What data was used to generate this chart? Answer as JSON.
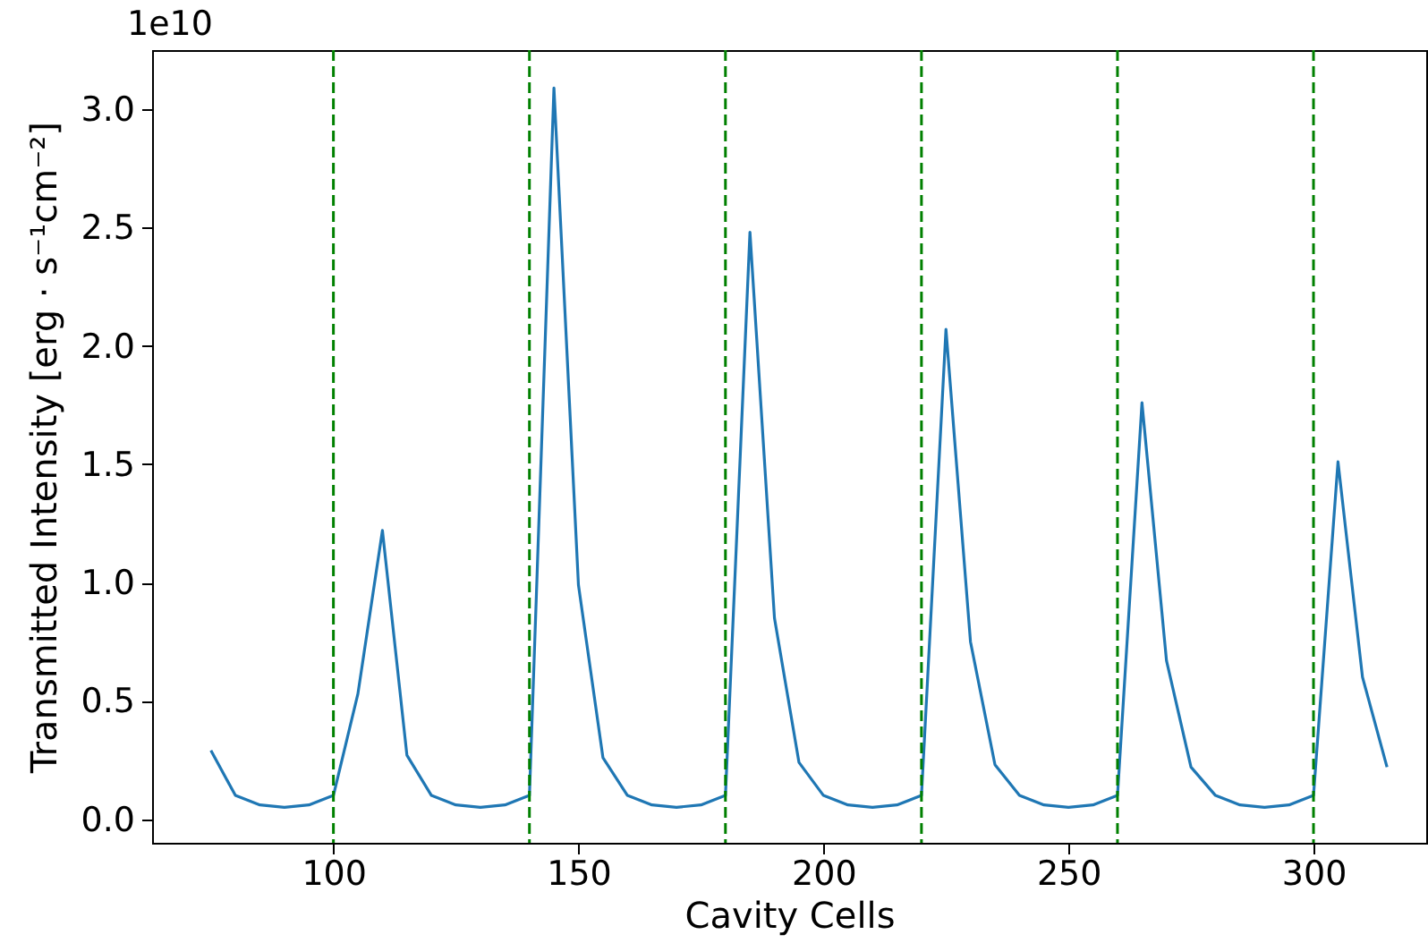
{
  "chart_data": {
    "type": "line",
    "xlabel": "Cavity Cells",
    "ylabel": "Transmitted Intensity [erg · s⁻¹cm⁻²]",
    "annotations": [
      "1e10"
    ],
    "x": [
      75,
      80,
      85,
      90,
      95,
      100,
      105,
      110,
      115,
      120,
      125,
      130,
      135,
      140,
      145,
      150,
      155,
      160,
      165,
      170,
      175,
      180,
      185,
      190,
      195,
      200,
      205,
      210,
      215,
      220,
      225,
      230,
      235,
      240,
      245,
      250,
      255,
      260,
      265,
      270,
      275,
      280,
      285,
      290,
      295,
      300,
      305,
      310,
      315
    ],
    "series": [
      {
        "color": "#1f77b4",
        "values": [
          0.29,
          0.1,
          0.06,
          0.05,
          0.06,
          0.1,
          0.53,
          1.22,
          0.27,
          0.1,
          0.06,
          0.05,
          0.06,
          0.1,
          3.09,
          0.99,
          0.26,
          0.1,
          0.06,
          0.05,
          0.06,
          0.1,
          2.48,
          0.85,
          0.24,
          0.1,
          0.06,
          0.05,
          0.06,
          0.1,
          2.07,
          0.75,
          0.23,
          0.1,
          0.06,
          0.05,
          0.06,
          0.1,
          1.76,
          0.67,
          0.22,
          0.1,
          0.06,
          0.05,
          0.06,
          0.1,
          1.51,
          0.6,
          0.22
        ]
      }
    ],
    "xlim": [
      63,
      323
    ],
    "xticks": [
      100,
      150,
      200,
      250,
      300
    ],
    "ylim": [
      -0.1,
      3.25
    ],
    "yticks": [
      {
        "value": 0,
        "label": "0.0"
      },
      {
        "value": 0.5,
        "label": "0.5"
      },
      {
        "value": 1,
        "label": "1.0"
      },
      {
        "value": 1.5,
        "label": "1.5"
      },
      {
        "value": 2,
        "label": "2.0"
      },
      {
        "value": 2.5,
        "label": "2.5"
      },
      {
        "value": 3,
        "label": "3.0"
      }
    ],
    "ref_lines": [
      {
        "axis": "x",
        "value": 100,
        "color": "#008000",
        "line_style": "dashed"
      },
      {
        "axis": "x",
        "value": 140,
        "color": "#008000",
        "line_style": "dashed"
      },
      {
        "axis": "x",
        "value": 180,
        "color": "#008000",
        "line_style": "dashed"
      },
      {
        "axis": "x",
        "value": 220,
        "color": "#008000",
        "line_style": "dashed"
      },
      {
        "axis": "x",
        "value": 260,
        "color": "#008000",
        "line_style": "dashed"
      },
      {
        "axis": "x",
        "value": 300,
        "color": "#008000",
        "line_style": "dashed"
      }
    ],
    "grid": false
  }
}
